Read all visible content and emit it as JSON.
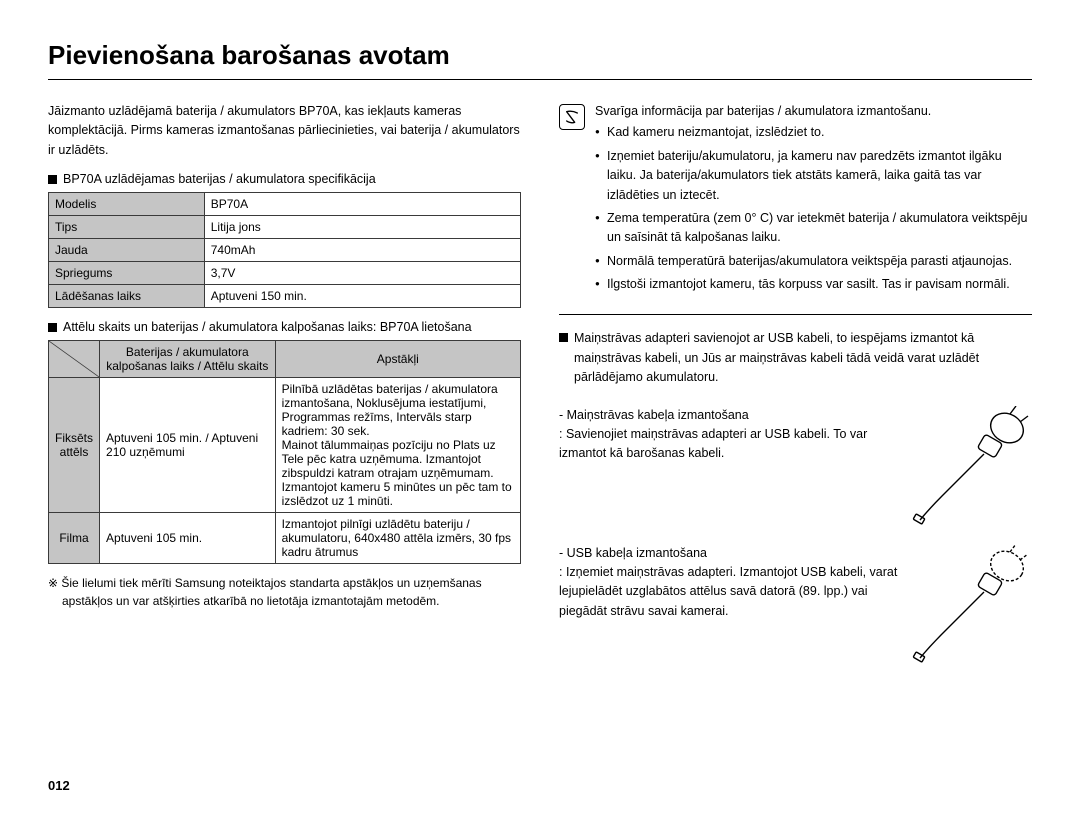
{
  "title": "Pievienošana barošanas avotam",
  "intro": "Jāizmanto uzlādējamā baterija / akumulators BP70A, kas iekļauts kameras komplektācijā. Pirms kameras izmantošanas pārliecinieties, vai baterija / akumulators ir uzlādēts.",
  "spec_heading": "BP70A uzlādējamas baterijas / akumulatora specifikācija",
  "spec_table": {
    "rows": [
      [
        "Modelis",
        "BP70A"
      ],
      [
        "Tips",
        "Litija jons"
      ],
      [
        "Jauda",
        "740mAh"
      ],
      [
        "Spriegums",
        "3,7V"
      ],
      [
        "Lādēšanas laiks",
        "Aptuveni 150 min."
      ]
    ]
  },
  "usage_heading": "Attēlu skaits un baterijas / akumulatora kalpošanas laiks: BP70A lietošana",
  "usage_table": {
    "col1_header": "Baterijas / akumulatora kalpošanas laiks / Attēlu skaits",
    "col2_header": "Apstākļi",
    "rows": [
      {
        "label": "Fiksēts attēls",
        "life": "Aptuveni 105 min. / Aptuveni 210 uzņēmumi",
        "cond": "Pilnībā uzlādētas baterijas / akumulatora izmantošana, Noklusējuma iestatījumi, Programmas režīms, Intervāls starp kadriem: 30 sek.\nMainot tālummaiņas pozīciju no Plats uz Tele pēc katra uzņēmuma. Izmantojot zibspuldzi katram otrajam uzņēmumam. Izmantojot kameru 5 minūtes un pēc tam to izslēdzot uz 1 minūti."
      },
      {
        "label": "Filma",
        "life": "Aptuveni 105 min.",
        "cond": "Izmantojot pilnīgi uzlādētu bateriju / akumulatoru, 640x480 attēla izmērs, 30 fps kadru ātrumus"
      }
    ]
  },
  "footnote": "※ Šie lielumi tiek mērīti Samsung noteiktajos standarta apstākļos un uzņemšanas apstākļos un var atšķirties atkarībā no lietotāja izmantotajām metodēm.",
  "note": {
    "lead": "Svarīga informācija par baterijas / akumulatora izmantošanu.",
    "items": [
      "Kad kameru neizmantojat, izslēdziet to.",
      "Izņemiet bateriju/akumulatoru, ja kameru nav paredzēts izmantot ilgāku laiku. Ja baterija/akumulators tiek atstāts kamerā, laika gaitā tas var izlādēties un iztecēt.",
      "Zema temperatūra (zem 0° C) var ietekmēt baterija / akumulatora veiktspēju un saīsināt tā kalpošanas laiku.",
      "Normālā temperatūrā baterijas/akumulatora veiktspēja parasti atjaunojas.",
      "Ilgstoši izmantojot kameru, tās korpuss var sasilt. Tas ir pavisam normāli."
    ]
  },
  "adapter_para": "Maiņstrāvas adapteri savienojot ar USB kabeli, to iespējams izmantot kā maiņstrāvas kabeli, un Jūs ar maiņstrāvas kabeli tādā veidā varat uzlādēt pārlādējamo akumulatoru.",
  "cable1": {
    "lead": "- Maiņstrāvas kabeļa izmantošana",
    "body": ": Savienojiet maiņstrāvas adapteri ar USB kabeli. To var izmantot kā barošanas kabeli."
  },
  "cable2": {
    "lead": "- USB kabeļa izmantošana",
    "body": ": Izņemiet maiņstrāvas adapteri. Izmantojot USB kabeli, varat lejupielādēt uzglabātos attēlus savā datorā (89. lpp.) vai piegādāt strāvu savai kamerai."
  },
  "page_number": "012",
  "colors": {
    "text": "#000000",
    "bg": "#ffffff",
    "table_header": "#c5c5c5",
    "border": "#3a3a3a"
  }
}
